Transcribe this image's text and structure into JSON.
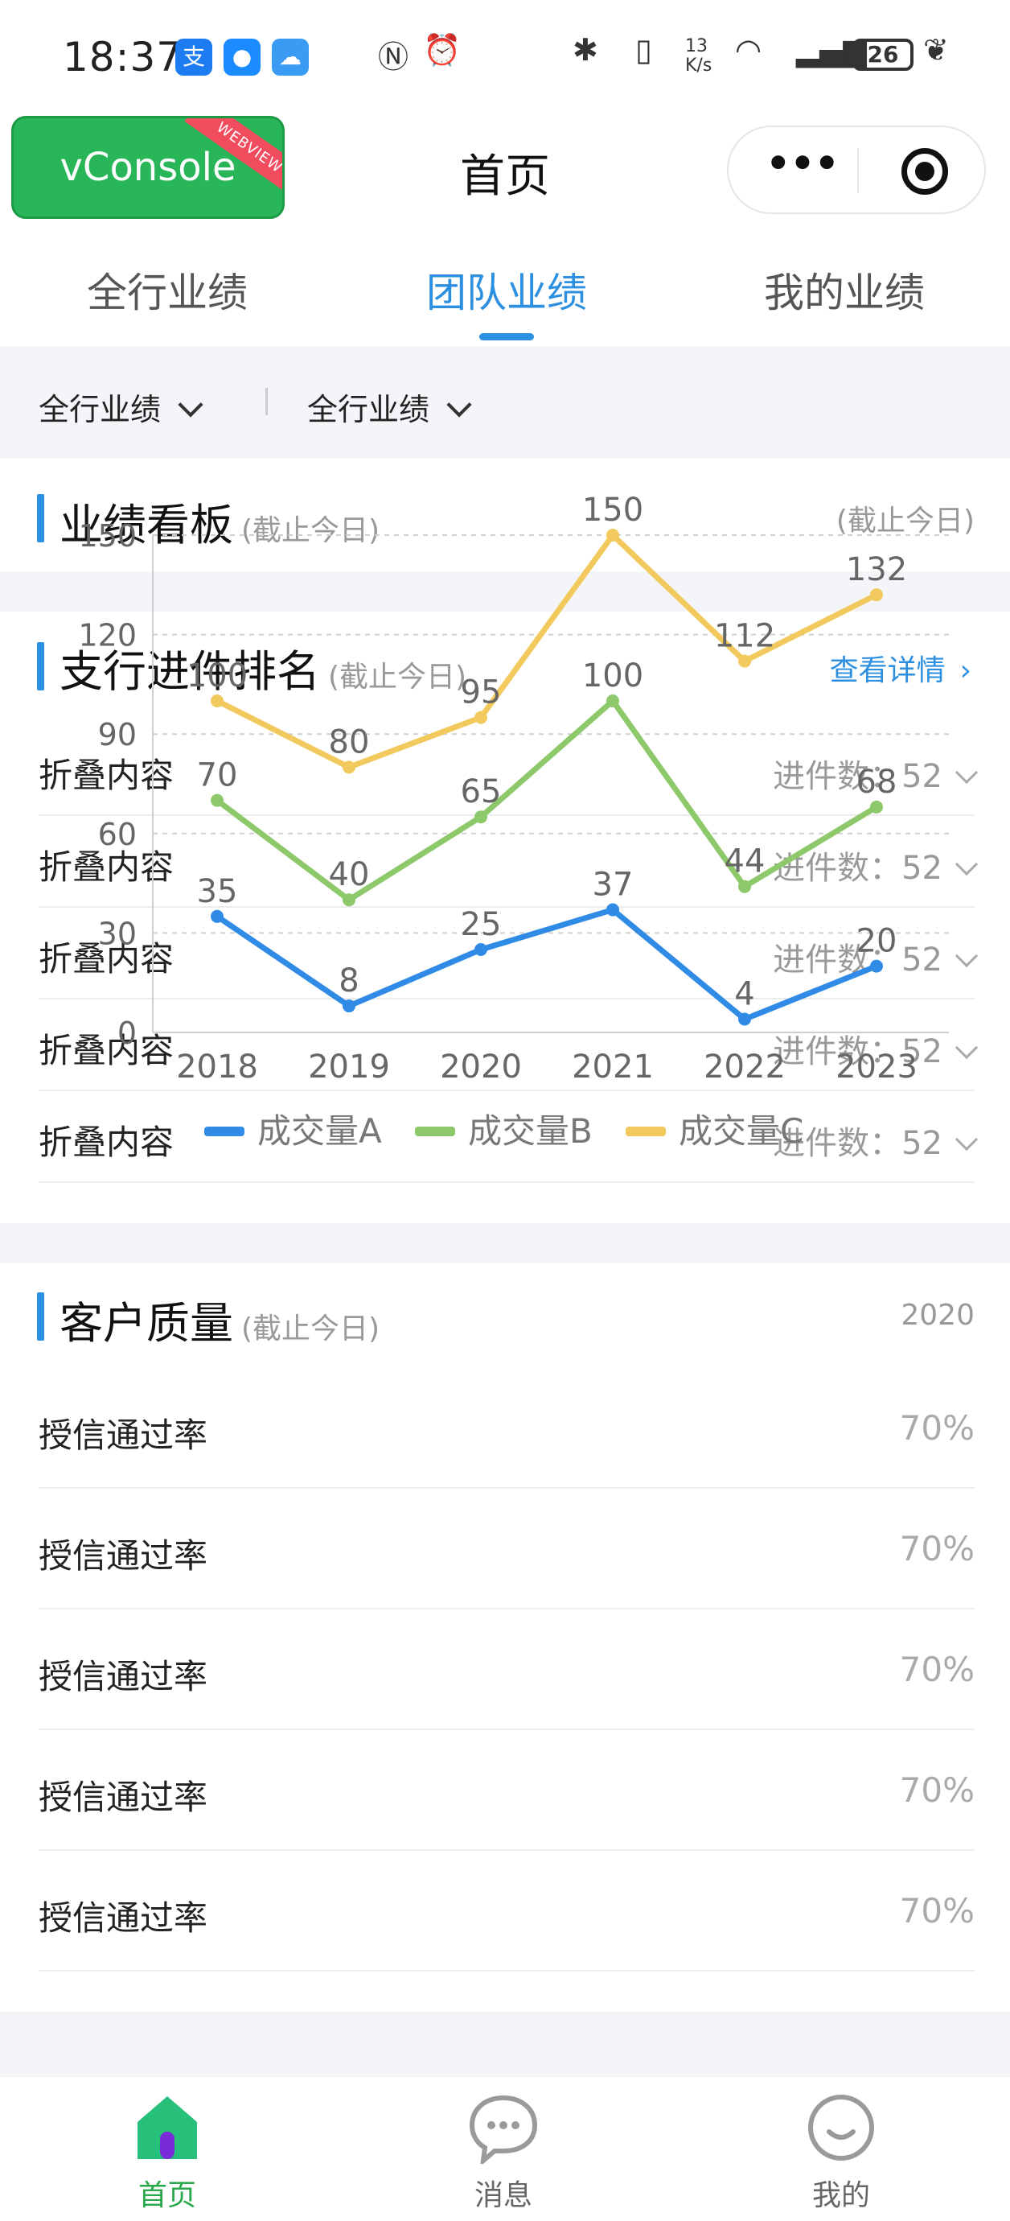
{
  "status_bar": {
    "time": "18:37",
    "apps": [
      "alipay-icon",
      "message-icon",
      "weather-icon"
    ],
    "net_speed": "13 K/s",
    "battery": "26"
  },
  "nav": {
    "vconsole_label": "vConsole",
    "vconsole_ribbon": "WEBVIEW",
    "title": "首页"
  },
  "tabs": [
    {
      "label": "全行业绩"
    },
    {
      "label": "团队业绩"
    },
    {
      "label": "我的业绩"
    }
  ],
  "filters": [
    {
      "label": "全行业绩"
    },
    {
      "label": "全行业绩"
    }
  ],
  "dashboard": {
    "title": "业绩看板",
    "subtitle": "(截止今日)",
    "right_note": "(截止今日)"
  },
  "ranking": {
    "title": "支行进件排名",
    "subtitle": "(截止今日)",
    "detail_link": "查看详情",
    "rows": [
      {
        "label": "折叠内容",
        "value": "进件数：52"
      },
      {
        "label": "折叠内容",
        "value": "进件数：52"
      },
      {
        "label": "折叠内容",
        "value": "进件数：52"
      },
      {
        "label": "折叠内容",
        "value": "进件数：52"
      },
      {
        "label": "折叠内容",
        "value": "进件数：52"
      }
    ]
  },
  "quality": {
    "title": "客户质量",
    "subtitle": "(截止今日)",
    "year": "2020",
    "rows": [
      {
        "label": "授信通过率",
        "value": "70%"
      },
      {
        "label": "授信通过率",
        "value": "70%"
      },
      {
        "label": "授信通过率",
        "value": "70%"
      },
      {
        "label": "授信通过率",
        "value": "70%"
      },
      {
        "label": "授信通过率",
        "value": "70%"
      }
    ]
  },
  "tabbar": [
    {
      "label": "首页",
      "icon": "home-icon"
    },
    {
      "label": "消息",
      "icon": "chat-icon"
    },
    {
      "label": "我的",
      "icon": "smile-icon"
    }
  ],
  "colors": {
    "accent": "#2d8fe0",
    "green": "#27a84a",
    "series_a": "#2f8be6",
    "series_b": "#8dc96a",
    "series_c": "#f2c95c"
  },
  "chart_data": {
    "type": "line",
    "categories": [
      "2018",
      "2019",
      "2020",
      "2021",
      "2022",
      "2023"
    ],
    "ylim": [
      0,
      150
    ],
    "yticks": [
      0,
      30,
      60,
      90,
      120,
      150
    ],
    "grid": true,
    "legend_position": "bottom",
    "series": [
      {
        "name": "成交量A",
        "values": [
          35,
          8,
          25,
          37,
          4,
          20
        ],
        "color": "#2f8be6"
      },
      {
        "name": "成交量B",
        "values": [
          70,
          40,
          65,
          100,
          44,
          68
        ],
        "color": "#8dc96a"
      },
      {
        "name": "成交量C",
        "values": [
          100,
          80,
          95,
          150,
          112,
          132
        ],
        "color": "#f2c95c"
      }
    ]
  }
}
